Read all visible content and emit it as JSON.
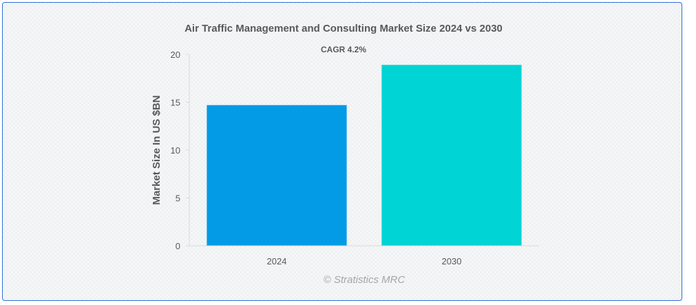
{
  "chart_data": {
    "type": "bar",
    "title": "Air Traffic Management and Consulting Market Size 2024 vs 2030",
    "subtitle": "CAGR 4.2%",
    "ylabel": "Market Size In US $BN",
    "xlabel": "",
    "categories": [
      "2024",
      "2030"
    ],
    "values": [
      14.7,
      18.9
    ],
    "colors": [
      "#039be5",
      "#00d4d4"
    ],
    "ylim": [
      0,
      20
    ],
    "yticks": [
      0,
      5,
      10,
      15,
      20
    ],
    "grid": false,
    "legend": "none"
  },
  "watermark": "© Stratistics MRC"
}
